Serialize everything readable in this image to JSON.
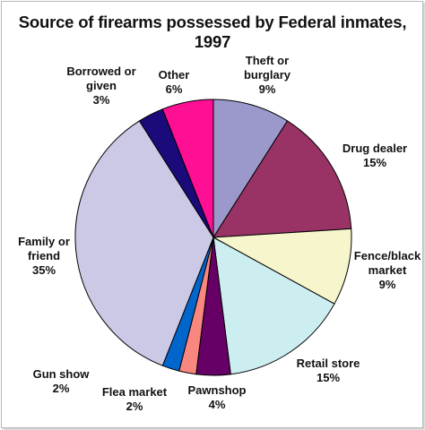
{
  "chart_data": {
    "type": "pie",
    "title": "Source of firearms possessed by Federal inmates, 1997",
    "slices": [
      {
        "label": [
          "Theft or",
          "burglary"
        ],
        "pct_label": "9%",
        "value": 9,
        "color": "#9b99cc"
      },
      {
        "label": [
          "Drug dealer"
        ],
        "pct_label": "15%",
        "value": 15,
        "color": "#993366"
      },
      {
        "label": [
          "Fence/black",
          "market"
        ],
        "pct_label": "9%",
        "value": 9,
        "color": "#f6f5cc"
      },
      {
        "label": [
          "Retail store"
        ],
        "pct_label": "15%",
        "value": 15,
        "color": "#cdeef0"
      },
      {
        "label": [
          "Pawnshop"
        ],
        "pct_label": "4%",
        "value": 4,
        "color": "#660066"
      },
      {
        "label": [
          "Flea market"
        ],
        "pct_label": "2%",
        "value": 2,
        "color": "#fa8680"
      },
      {
        "label": [
          "Gun show"
        ],
        "pct_label": "2%",
        "value": 2,
        "color": "#0066cc"
      },
      {
        "label": [
          "Family or",
          "friend"
        ],
        "pct_label": "35%",
        "value": 35,
        "color": "#ccc9e6"
      },
      {
        "label": [
          "Borrowed or",
          "given"
        ],
        "pct_label": "3%",
        "value": 3,
        "color": "#1a0a7a"
      },
      {
        "label": [
          "Other"
        ],
        "pct_label": "6%",
        "value": 6,
        "color": "#ff0f93"
      }
    ]
  }
}
